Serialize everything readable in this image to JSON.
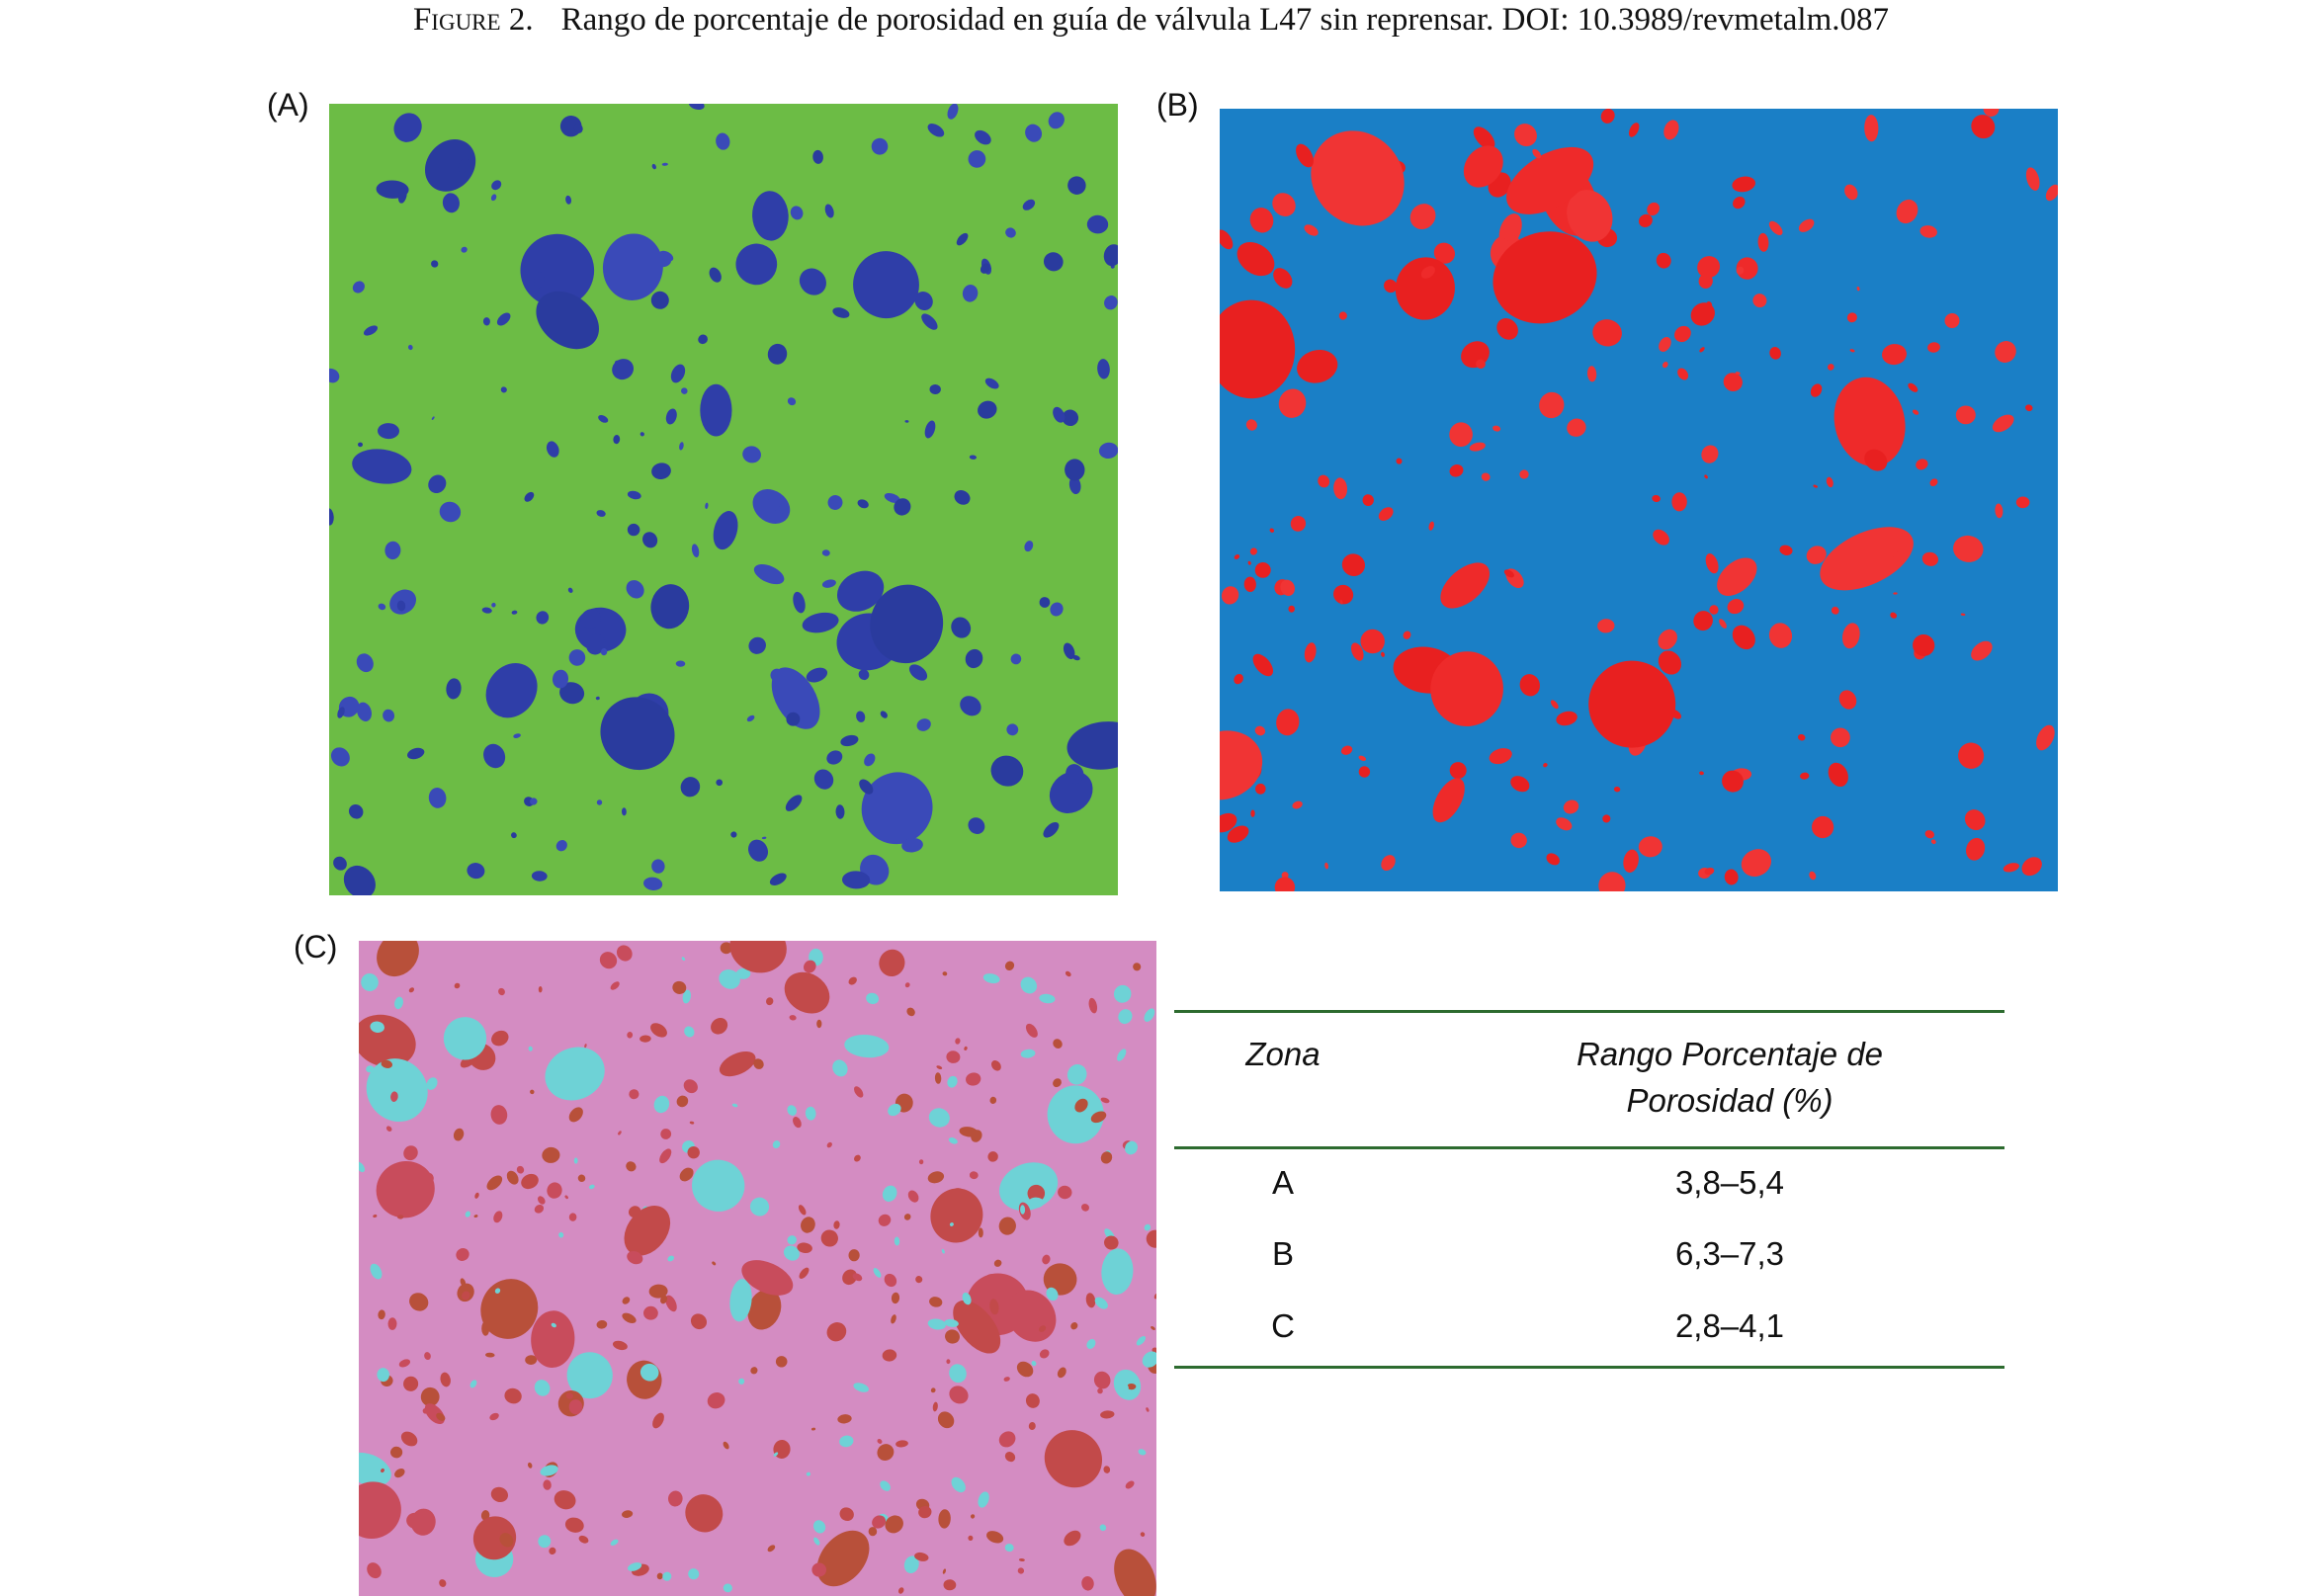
{
  "caption": {
    "label": "Figure 2.",
    "text": "Rango de porcentaje de porosidad en guía de válvula L47 sin reprensar. DOI: 10.3989/revmetalm.087"
  },
  "panels": [
    {
      "label": "(A)"
    },
    {
      "label": "(B)"
    },
    {
      "label": "(C)"
    }
  ],
  "table": {
    "header": [
      "Zona",
      "Rango Porcentaje de Porosidad (%)"
    ],
    "rows": [
      [
        "A",
        "3,8–5,4"
      ],
      [
        "B",
        "6,3–7,3"
      ],
      [
        "C",
        "2,8–4,1"
      ]
    ]
  }
}
